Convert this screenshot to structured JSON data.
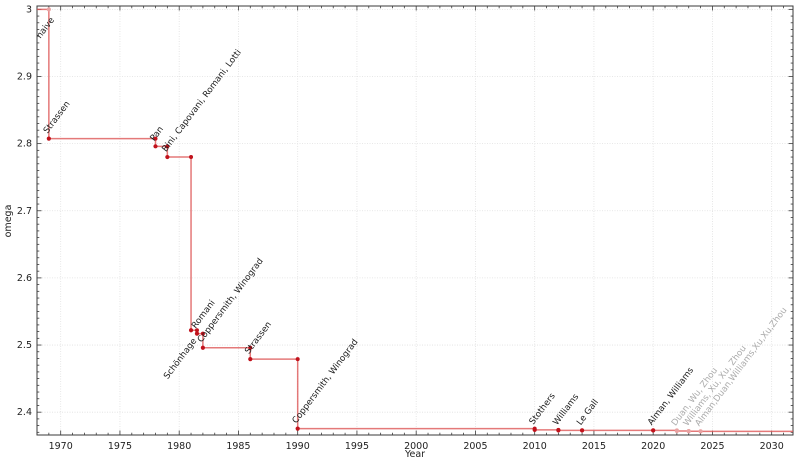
{
  "chart_data": {
    "type": "line",
    "step_style": "post",
    "title": "",
    "xlabel": "Year",
    "ylabel": "omega",
    "xlim": [
      1968,
      2031.8
    ],
    "ylim": [
      2.366,
      3.005
    ],
    "x_ticks": [
      1970,
      1975,
      1980,
      1985,
      1990,
      1995,
      2000,
      2005,
      2010,
      2015,
      2020,
      2025,
      2030
    ],
    "y_ticks": [
      2.4,
      2.5,
      2.6,
      2.7,
      2.8,
      2.9,
      3
    ],
    "x_minor_step": 1,
    "y_minor_step": 0.01,
    "grid": true,
    "legend": "none",
    "colors": {
      "line": "#dd5858",
      "marker": "#c1121c",
      "light_marker": "#e8a2a2",
      "label": "#1c1c1c",
      "recent_label": "#ababab",
      "grid": "#e0e0e0",
      "axis": "#3a3a3a"
    },
    "series_start": {
      "year": 1968,
      "omega": 3
    },
    "points": [
      {
        "year": 1969,
        "omega": 3,
        "label": "naive",
        "placement": "below",
        "tone": "light"
      },
      {
        "year": 1969,
        "omega": 2.8074,
        "label": "Strassen",
        "placement": "above",
        "tone": "normal"
      },
      {
        "year": 1978,
        "omega": 2.796,
        "label": "Pan",
        "placement": "above",
        "tone": "normal"
      },
      {
        "year": 1979,
        "omega": 2.78,
        "label": "Bini, Capovani, Romani, Lotti",
        "placement": "above",
        "tone": "normal"
      },
      {
        "year": 1981,
        "omega": 2.522,
        "label": "Schönhage",
        "placement": "below",
        "tone": "normal"
      },
      {
        "year": 1981.5,
        "omega": 2.517,
        "label": "Romani",
        "placement": "above",
        "tone": "normal"
      },
      {
        "year": 1982,
        "omega": 2.496,
        "label": "Coppersmith, Winograd",
        "placement": "above",
        "tone": "normal"
      },
      {
        "year": 1986,
        "omega": 2.479,
        "label": "Strassen",
        "placement": "above",
        "tone": "normal"
      },
      {
        "year": 1990,
        "omega": 2.3755,
        "label": "Coppersmith, Winograd",
        "placement": "above",
        "tone": "normal"
      },
      {
        "year": 2010,
        "omega": 2.3737,
        "label": "Stothers",
        "placement": "above",
        "tone": "normal"
      },
      {
        "year": 2012,
        "omega": 2.3729,
        "label": "Williams",
        "placement": "above",
        "tone": "normal"
      },
      {
        "year": 2014,
        "omega": 2.3728639,
        "label": "Le Gall",
        "placement": "above",
        "tone": "normal"
      },
      {
        "year": 2020,
        "omega": 2.3728596,
        "label": "Alman, Williams",
        "placement": "above",
        "tone": "normal"
      },
      {
        "year": 2022,
        "omega": 2.371866,
        "label": "Duan, Wu, Zhou",
        "placement": "above",
        "tone": "recent"
      },
      {
        "year": 2023,
        "omega": 2.371552,
        "label": "Williams, Xu, Xu, Zhou",
        "placement": "above",
        "tone": "recent"
      },
      {
        "year": 2024,
        "omega": 2.371339,
        "label": "Alman,Duan,Williams,Xu,Xu,Zhou",
        "placement": "above",
        "tone": "recent"
      }
    ]
  }
}
